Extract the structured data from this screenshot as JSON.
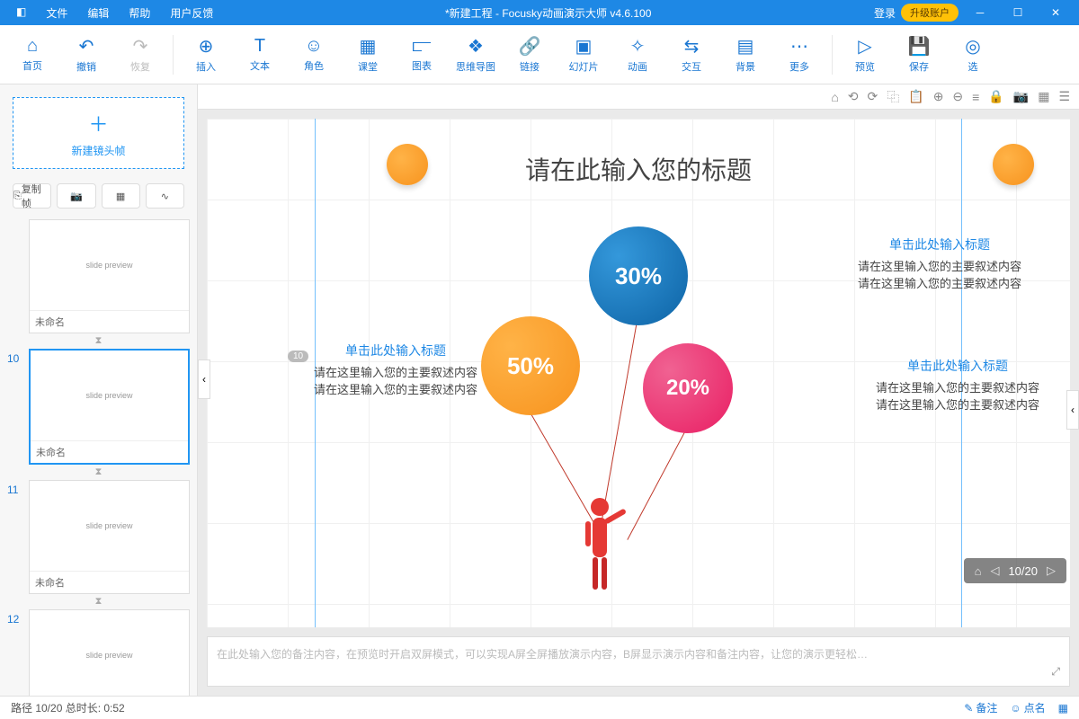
{
  "app": {
    "menus": [
      "文件",
      "编辑",
      "帮助",
      "用户反馈"
    ],
    "title": "*新建工程 - Focusky动画演示大师  v4.6.100",
    "login": "登录",
    "upgrade": "升级账户"
  },
  "ribbon": [
    {
      "icon": "⌂",
      "label": "首页"
    },
    {
      "icon": "↶",
      "label": "撤销"
    },
    {
      "icon": "↷",
      "label": "恢复",
      "disabled": true
    },
    {
      "sep": true
    },
    {
      "icon": "⊕",
      "label": "插入"
    },
    {
      "icon": "T",
      "label": "文本"
    },
    {
      "icon": "☺",
      "label": "角色"
    },
    {
      "icon": "▦",
      "label": "课堂"
    },
    {
      "icon": "⫍",
      "label": "图表"
    },
    {
      "icon": "❖",
      "label": "思维导图"
    },
    {
      "icon": "🔗",
      "label": "链接"
    },
    {
      "icon": "▣",
      "label": "幻灯片"
    },
    {
      "icon": "✧",
      "label": "动画"
    },
    {
      "icon": "⇆",
      "label": "交互"
    },
    {
      "icon": "▤",
      "label": "背景"
    },
    {
      "icon": "⋯",
      "label": "更多"
    },
    {
      "sep": true
    },
    {
      "icon": "▷",
      "label": "预览"
    },
    {
      "icon": "💾",
      "label": "保存"
    },
    {
      "icon": "◎",
      "label": "选"
    }
  ],
  "sidebar": {
    "newframe": "新建镜头帧",
    "copyframe": "复制帧",
    "thumbs": [
      {
        "num": "",
        "name": "未命名",
        "sel": false
      },
      {
        "num": "10",
        "name": "未命名",
        "sel": true
      },
      {
        "num": "11",
        "name": "未命名",
        "sel": false
      },
      {
        "num": "12",
        "name": "",
        "sel": false
      }
    ]
  },
  "canvas": {
    "title": "请在此输入您的标题",
    "balloons": {
      "b1": "30%",
      "b2": "50%",
      "b3": "20%"
    },
    "blocks": {
      "h": "单击此处输入标题",
      "l1": "请在这里输入您的主要叙述内容",
      "l2": "请在这里输入您的主要叙述内容"
    },
    "numtag": "10",
    "pager": "10/20"
  },
  "notes": {
    "placeholder": "在此处输入您的备注内容，在预览时开启双屏模式，可以实现A屏全屏播放演示内容，B屏显示演示内容和备注内容，让您的演示更轻松…"
  },
  "status": {
    "left": "路径 10/20    总时长: 0:52",
    "note": "备注",
    "dots": "点名"
  }
}
